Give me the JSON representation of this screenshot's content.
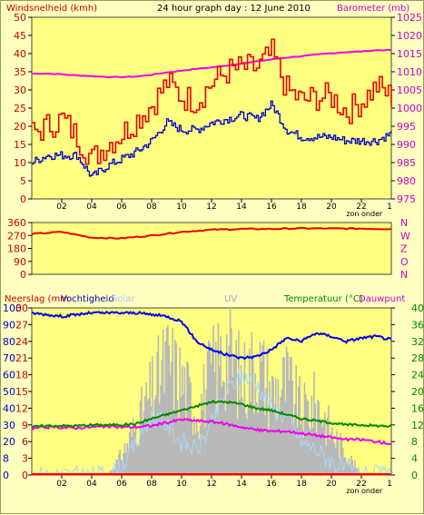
{
  "header": {
    "left_title": "Windsnelheid (kmh)",
    "center_title": "24 hour graph day : 12 June 2010",
    "right_title": "Barometer (mb)"
  },
  "colors": {
    "background": "#ffffc0",
    "wind_avg": "#0000cc",
    "wind_gust": "#ee0000",
    "barometer": "#ee00ee",
    "wind_dir": "#ee0000",
    "humidity": "#0000ee",
    "temperature": "#008800",
    "dewpoint": "#ee00ee",
    "rain": "#ee0000",
    "uv_bars": "#b8b8b8",
    "solar": "#a8d8f8",
    "axis_left_color": "#cc0000",
    "axis_right_color": "#cc00cc",
    "temp_axis_color": "#008800"
  },
  "x_axis": {
    "ticks": [
      "02",
      "04",
      "06",
      "08",
      "10",
      "12",
      "14",
      "16",
      "18",
      "20",
      "22"
    ],
    "end_tick": "1",
    "note": "zon onder"
  },
  "chart_data": [
    {
      "type": "line",
      "title": "24 hour graph day : 12 June 2010",
      "ylabel_left": "Windsnelheid (kmh)",
      "ylabel_right": "Barometer (mb)",
      "ylim_left": [
        0,
        50
      ],
      "ylim_right": [
        975,
        1025
      ],
      "yticks_left": [
        0,
        5,
        10,
        15,
        20,
        25,
        30,
        35,
        40,
        45,
        50
      ],
      "yticks_right": [
        975,
        980,
        985,
        990,
        995,
        1000,
        1005,
        1010,
        1015,
        1020,
        1025
      ],
      "x_hours": [
        0,
        1,
        2,
        3,
        4,
        5,
        6,
        7,
        8,
        9,
        10,
        11,
        12,
        13,
        14,
        15,
        16,
        17,
        18,
        19,
        20,
        21,
        22,
        23,
        24
      ],
      "series": [
        {
          "name": "Barometer",
          "axis": "right",
          "values": [
            1009.5,
            1009.5,
            1009.3,
            1009,
            1008.8,
            1008.6,
            1008.5,
            1008.7,
            1009.2,
            1009.8,
            1010.3,
            1010.8,
            1011.2,
            1011.7,
            1012.3,
            1012.8,
            1013.4,
            1013.9,
            1014.3,
            1014.7,
            1015.1,
            1015.4,
            1015.6,
            1015.9,
            1016
          ]
        },
        {
          "name": "Windsnelheid (kmh)",
          "axis": "left",
          "values": [
            10,
            12,
            12,
            12,
            6,
            9,
            11,
            13,
            16,
            21,
            19,
            19,
            21,
            22,
            23,
            22,
            26,
            19,
            17,
            17,
            17,
            16,
            16,
            16,
            18
          ]
        },
        {
          "name": "Windstoot",
          "axis": "left",
          "values": [
            18,
            20,
            22,
            17,
            11,
            15,
            18,
            22,
            26,
            32,
            28,
            27,
            32,
            35,
            36,
            36,
            40,
            30,
            27,
            28,
            28,
            24,
            27,
            31,
            28
          ]
        }
      ]
    },
    {
      "type": "line",
      "ylim": [
        0,
        360
      ],
      "yticks": [
        0,
        90,
        180,
        270,
        360
      ],
      "ylabels_right": [
        "N",
        "O",
        "Z",
        "W",
        "N"
      ],
      "x_hours": [
        0,
        2,
        4,
        6,
        8,
        10,
        12,
        14,
        16,
        18,
        20,
        22,
        24
      ],
      "series": [
        {
          "name": "Windrichting",
          "values": [
            280,
            295,
            255,
            250,
            270,
            295,
            310,
            315,
            315,
            320,
            318,
            318,
            315
          ]
        }
      ]
    },
    {
      "type": "line",
      "ylabel_left": "Neerslag (mm",
      "ylabel_left_2": "Vochtigheid",
      "ylabel_solar": "Solar",
      "ylabel_uv": "UV",
      "ylabel_right": "Temperatuur (°C)",
      "ylabel_right_2": "Dauwpunt",
      "ylim_humidity": [
        0,
        100
      ],
      "ylim_temp": [
        0,
        40
      ],
      "yticks_humidity": [
        0,
        8,
        20,
        30,
        40,
        50,
        60,
        70,
        80,
        90,
        100
      ],
      "yticks_rain": [
        0,
        3,
        6,
        9,
        12,
        15,
        18,
        21,
        24,
        27,
        30
      ],
      "yticks_temp": [
        0,
        4,
        8,
        12,
        16,
        20,
        24,
        28,
        32,
        36,
        40
      ],
      "x_hours": [
        0,
        1,
        2,
        3,
        4,
        5,
        6,
        7,
        8,
        9,
        10,
        11,
        12,
        13,
        14,
        15,
        16,
        17,
        18,
        19,
        20,
        21,
        22,
        23,
        24
      ],
      "series": [
        {
          "name": "Vochtigheid",
          "axis": "humidity",
          "values": [
            97,
            96,
            95,
            96,
            97,
            97,
            97,
            97,
            96,
            95,
            92,
            80,
            75,
            72,
            70,
            71,
            75,
            82,
            80,
            85,
            83,
            80,
            82,
            83,
            81
          ]
        },
        {
          "name": "Temperatuur (°C)",
          "axis": "temp",
          "values": [
            11.5,
            11.8,
            11.8,
            11.8,
            12,
            12,
            12,
            12.3,
            13.5,
            14.5,
            15.5,
            16.5,
            17.5,
            17.5,
            17,
            16,
            15.5,
            14.5,
            13.5,
            13,
            12.5,
            12,
            12,
            11.8,
            11.7
          ]
        },
        {
          "name": "Dauwpunt",
          "axis": "temp",
          "values": [
            11.2,
            11.4,
            11.4,
            11.3,
            11.5,
            11.6,
            11.5,
            11.5,
            11.8,
            12.5,
            13.3,
            13,
            12.8,
            12.2,
            11.5,
            10.8,
            10.5,
            10.5,
            10,
            9.5,
            9,
            8.5,
            8.5,
            8,
            7.5
          ]
        },
        {
          "name": "Neerslag (mm",
          "axis": "rain",
          "values": [
            0.2,
            0.2,
            0.2,
            0.2,
            0.2,
            0.2,
            0.2,
            0.2,
            0.2,
            0.2,
            0.2,
            0.2,
            0.2,
            0.2,
            0.2,
            0.2,
            0.2,
            0.2,
            0.2,
            0.2,
            0.2,
            0.2,
            0.2,
            0.2,
            0.2
          ]
        },
        {
          "name": "UV",
          "axis": "humidity",
          "values": [
            0,
            0,
            0,
            0,
            0,
            0,
            10,
            25,
            40,
            55,
            45,
            30,
            50,
            60,
            45,
            55,
            40,
            45,
            30,
            35,
            20,
            10,
            0,
            0,
            0
          ]
        },
        {
          "name": "Solar",
          "axis": "humidity",
          "values": [
            0,
            0,
            0,
            0,
            0,
            0,
            5,
            20,
            35,
            30,
            20,
            15,
            30,
            50,
            60,
            55,
            40,
            35,
            20,
            15,
            8,
            3,
            0,
            0,
            0
          ]
        }
      ]
    }
  ]
}
